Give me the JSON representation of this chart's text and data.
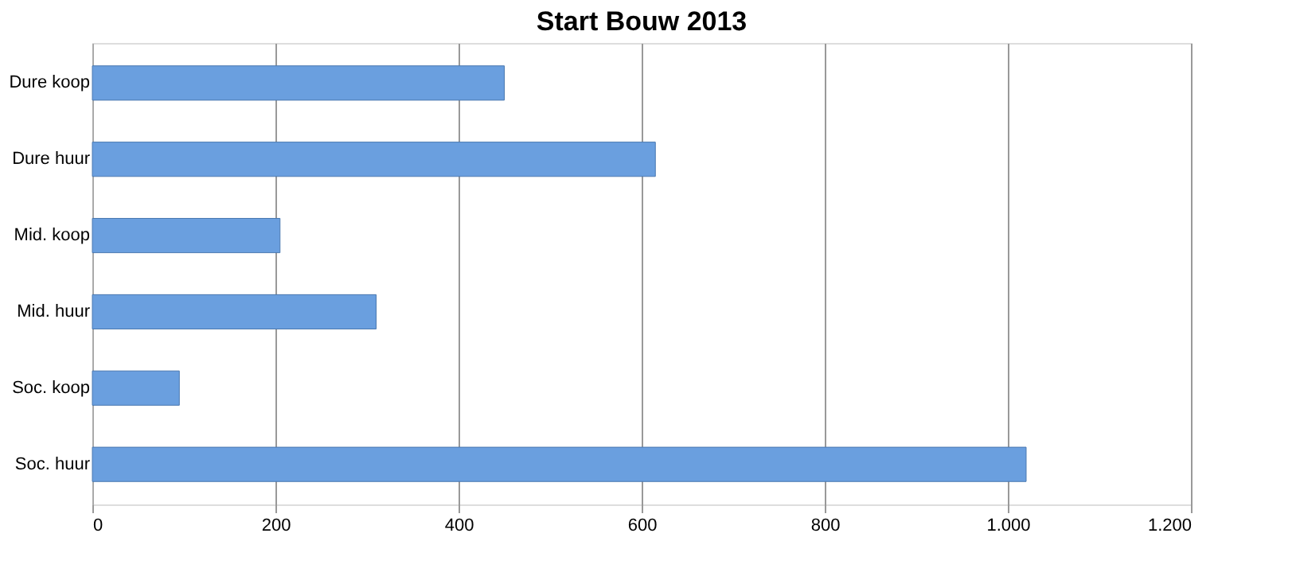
{
  "chart_data": {
    "type": "bar",
    "orientation": "horizontal",
    "title": "Start Bouw 2013",
    "categories": [
      "Dure koop",
      "Dure huur",
      "Mid. koop",
      "Mid. huur",
      "Soc. koop",
      "Soc. huur"
    ],
    "values": [
      450,
      615,
      205,
      310,
      95,
      1020
    ],
    "color": "#6a9fdf",
    "xlim": [
      0,
      1200
    ],
    "xticks": [
      0,
      200,
      400,
      600,
      800,
      {
        "value": 1000,
        "label": "1.000"
      },
      {
        "value": 1200,
        "label": "1.200"
      }
    ],
    "grid": "x"
  }
}
